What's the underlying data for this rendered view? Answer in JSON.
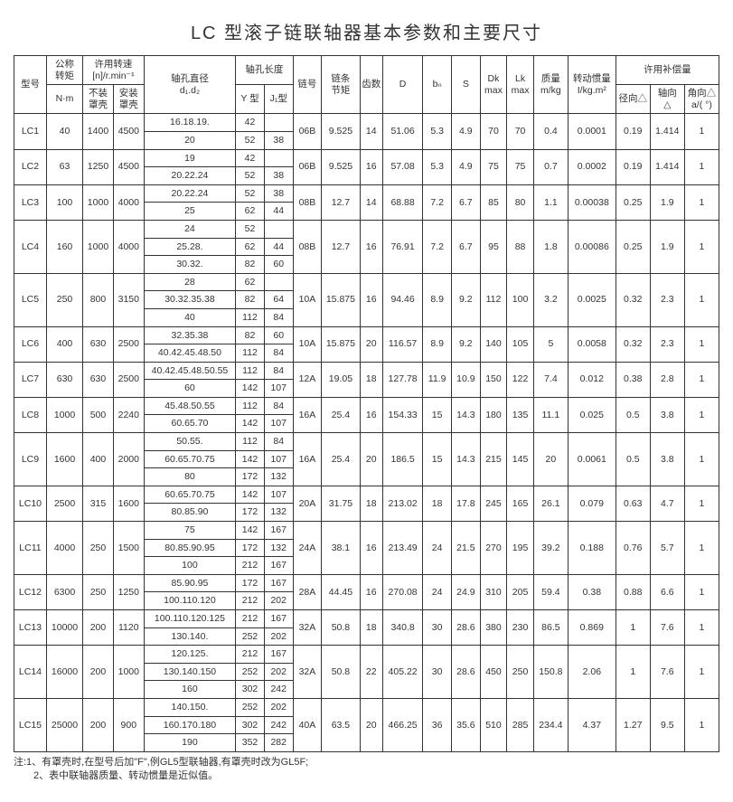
{
  "title": "LC 型滚子链联轴器基本参数和主要尺寸",
  "headers": {
    "col1": "型号",
    "col2": "公称\n转矩",
    "col2u": "N·m",
    "col3": "许用转速\n[n]/r.min⁻¹",
    "col3a": "不装\n罩壳",
    "col3b": "安装\n罩壳",
    "col4": "轴孔直径\nd₁.d₂",
    "col5": "轴孔长度",
    "col5a": "Y 型",
    "col5b": "J₁型",
    "col6": "链号",
    "col7": "链条\n节矩",
    "col8": "齿数",
    "col9": "D",
    "col10": "bₙ",
    "col11": "S",
    "col12": "Dk\nmax",
    "col13": "Lk\nmax",
    "col14": "质量\nm/kg",
    "col15": "转动惯量\nI/kg.m²",
    "col16": "许用补偿量",
    "col16a": "径向△",
    "col16b": "轴向\n△",
    "col16c": "角向△\na/( °)"
  },
  "rows": [
    {
      "id": "LC1",
      "nm": "40",
      "n1": "1400",
      "n2": "4500",
      "bore": [
        {
          "d": "16.18.19.",
          "y": "42",
          "j": ""
        },
        {
          "d": "20",
          "y": "52",
          "j": "38"
        }
      ],
      "chain": "06B",
      "pitch": "9.525",
      "z": "14",
      "D": "51.06",
      "bn": "5.3",
      "S": "4.9",
      "Dk": "70",
      "Lk": "70",
      "mkg": "0.4",
      "I": "0.0001",
      "rad": "0.19",
      "ax": "1.414",
      "ang": "1"
    },
    {
      "id": "LC2",
      "nm": "63",
      "n1": "1250",
      "n2": "4500",
      "bore": [
        {
          "d": "19",
          "y": "42",
          "j": ""
        },
        {
          "d": "20.22.24",
          "y": "52",
          "j": "38"
        }
      ],
      "chain": "06B",
      "pitch": "9.525",
      "z": "16",
      "D": "57.08",
      "bn": "5.3",
      "S": "4.9",
      "Dk": "75",
      "Lk": "75",
      "mkg": "0.7",
      "I": "0.0002",
      "rad": "0.19",
      "ax": "1.414",
      "ang": "1"
    },
    {
      "id": "LC3",
      "nm": "100",
      "n1": "1000",
      "n2": "4000",
      "bore": [
        {
          "d": "20.22.24",
          "y": "52",
          "j": "38"
        },
        {
          "d": "25",
          "y": "62",
          "j": "44"
        }
      ],
      "chain": "08B",
      "pitch": "12.7",
      "z": "14",
      "D": "68.88",
      "bn": "7.2",
      "S": "6.7",
      "Dk": "85",
      "Lk": "80",
      "mkg": "1.1",
      "I": "0.00038",
      "rad": "0.25",
      "ax": "1.9",
      "ang": "1"
    },
    {
      "id": "LC4",
      "nm": "160",
      "n1": "1000",
      "n2": "4000",
      "bore": [
        {
          "d": "24",
          "y": "52",
          "j": ""
        },
        {
          "d": "25.28.",
          "y": "62",
          "j": "44"
        },
        {
          "d": "30.32.",
          "y": "82",
          "j": "60"
        }
      ],
      "chain": "08B",
      "pitch": "12.7",
      "z": "16",
      "D": "76.91",
      "bn": "7.2",
      "S": "6.7",
      "Dk": "95",
      "Lk": "88",
      "mkg": "1.8",
      "I": "0.00086",
      "rad": "0.25",
      "ax": "1.9",
      "ang": "1"
    },
    {
      "id": "LC5",
      "nm": "250",
      "n1": "800",
      "n2": "3150",
      "bore": [
        {
          "d": "28",
          "y": "62",
          "j": ""
        },
        {
          "d": "30.32.35.38",
          "y": "82",
          "j": "64"
        },
        {
          "d": "40",
          "y": "112",
          "j": "84"
        }
      ],
      "chain": "10A",
      "pitch": "15.875",
      "z": "16",
      "D": "94.46",
      "bn": "8.9",
      "S": "9.2",
      "Dk": "112",
      "Lk": "100",
      "mkg": "3.2",
      "I": "0.0025",
      "rad": "0.32",
      "ax": "2.3",
      "ang": "1"
    },
    {
      "id": "LC6",
      "nm": "400",
      "n1": "630",
      "n2": "2500",
      "bore": [
        {
          "d": "32.35.38",
          "y": "82",
          "j": "60"
        },
        {
          "d": "40.42.45.48.50",
          "y": "112",
          "j": "84"
        }
      ],
      "chain": "10A",
      "pitch": "15.875",
      "z": "20",
      "D": "116.57",
      "bn": "8.9",
      "S": "9.2",
      "Dk": "140",
      "Lk": "105",
      "mkg": "5",
      "I": "0.0058",
      "rad": "0.32",
      "ax": "2.3",
      "ang": "1"
    },
    {
      "id": "LC7",
      "nm": "630",
      "n1": "630",
      "n2": "2500",
      "bore": [
        {
          "d": "40.42.45.48.50.55",
          "y": "112",
          "j": "84"
        },
        {
          "d": "60",
          "y": "142",
          "j": "107"
        }
      ],
      "chain": "12A",
      "pitch": "19.05",
      "z": "18",
      "D": "127.78",
      "bn": "11.9",
      "S": "10.9",
      "Dk": "150",
      "Lk": "122",
      "mkg": "7.4",
      "I": "0.012",
      "rad": "0.38",
      "ax": "2.8",
      "ang": "1"
    },
    {
      "id": "LC8",
      "nm": "1000",
      "n1": "500",
      "n2": "2240",
      "bore": [
        {
          "d": "45.48.50.55",
          "y": "112",
          "j": "84"
        },
        {
          "d": "60.65.70",
          "y": "142",
          "j": "107"
        }
      ],
      "chain": "16A",
      "pitch": "25.4",
      "z": "16",
      "D": "154.33",
      "bn": "15",
      "S": "14.3",
      "Dk": "180",
      "Lk": "135",
      "mkg": "11.1",
      "I": "0.025",
      "rad": "0.5",
      "ax": "3.8",
      "ang": "1"
    },
    {
      "id": "LC9",
      "nm": "1600",
      "n1": "400",
      "n2": "2000",
      "bore": [
        {
          "d": "50.55.",
          "y": "112",
          "j": "84"
        },
        {
          "d": "60.65.70.75",
          "y": "142",
          "j": "107"
        },
        {
          "d": "80",
          "y": "172",
          "j": "132"
        }
      ],
      "chain": "16A",
      "pitch": "25.4",
      "z": "20",
      "D": "186.5",
      "bn": "15",
      "S": "14.3",
      "Dk": "215",
      "Lk": "145",
      "mkg": "20",
      "I": "0.0061",
      "rad": "0.5",
      "ax": "3.8",
      "ang": "1"
    },
    {
      "id": "LC10",
      "nm": "2500",
      "n1": "315",
      "n2": "1600",
      "bore": [
        {
          "d": "60.65.70.75",
          "y": "142",
          "j": "107"
        },
        {
          "d": "80.85.90",
          "y": "172",
          "j": "132"
        }
      ],
      "chain": "20A",
      "pitch": "31.75",
      "z": "18",
      "D": "213.02",
      "bn": "18",
      "S": "17.8",
      "Dk": "245",
      "Lk": "165",
      "mkg": "26.1",
      "I": "0.079",
      "rad": "0.63",
      "ax": "4.7",
      "ang": "1"
    },
    {
      "id": "LC11",
      "nm": "4000",
      "n1": "250",
      "n2": "1500",
      "bore": [
        {
          "d": "75",
          "y": "142",
          "j": "167"
        },
        {
          "d": "80.85.90.95",
          "y": "172",
          "j": "132"
        },
        {
          "d": "100",
          "y": "212",
          "j": "167"
        }
      ],
      "chain": "24A",
      "pitch": "38.1",
      "z": "16",
      "D": "213.49",
      "bn": "24",
      "S": "21.5",
      "Dk": "270",
      "Lk": "195",
      "mkg": "39.2",
      "I": "0.188",
      "rad": "0.76",
      "ax": "5.7",
      "ang": "1"
    },
    {
      "id": "LC12",
      "nm": "6300",
      "n1": "250",
      "n2": "1250",
      "bore": [
        {
          "d": "85.90.95",
          "y": "172",
          "j": "167"
        },
        {
          "d": "100.110.120",
          "y": "212",
          "j": "202"
        }
      ],
      "chain": "28A",
      "pitch": "44.45",
      "z": "16",
      "D": "270.08",
      "bn": "24",
      "S": "24.9",
      "Dk": "310",
      "Lk": "205",
      "mkg": "59.4",
      "I": "0.38",
      "rad": "0.88",
      "ax": "6.6",
      "ang": "1"
    },
    {
      "id": "LC13",
      "nm": "10000",
      "n1": "200",
      "n2": "1120",
      "bore": [
        {
          "d": "100.110.120.125",
          "y": "212",
          "j": "167"
        },
        {
          "d": "130.140.",
          "y": "252",
          "j": "202"
        }
      ],
      "chain": "32A",
      "pitch": "50.8",
      "z": "18",
      "D": "340.8",
      "bn": "30",
      "S": "28.6",
      "Dk": "380",
      "Lk": "230",
      "mkg": "86.5",
      "I": "0.869",
      "rad": "1",
      "ax": "7.6",
      "ang": "1"
    },
    {
      "id": "LC14",
      "nm": "16000",
      "n1": "200",
      "n2": "1000",
      "bore": [
        {
          "d": "120.125.",
          "y": "212",
          "j": "167"
        },
        {
          "d": "130.140.150",
          "y": "252",
          "j": "202"
        },
        {
          "d": "160",
          "y": "302",
          "j": "242"
        }
      ],
      "chain": "32A",
      "pitch": "50.8",
      "z": "22",
      "D": "405.22",
      "bn": "30",
      "S": "28.6",
      "Dk": "450",
      "Lk": "250",
      "mkg": "150.8",
      "I": "2.06",
      "rad": "1",
      "ax": "7.6",
      "ang": "1"
    },
    {
      "id": "LC15",
      "nm": "25000",
      "n1": "200",
      "n2": "900",
      "bore": [
        {
          "d": "140.150.",
          "y": "252",
          "j": "202"
        },
        {
          "d": "160.170.180",
          "y": "302",
          "j": "242"
        },
        {
          "d": "190",
          "y": "352",
          "j": "282"
        }
      ],
      "chain": "40A",
      "pitch": "63.5",
      "z": "20",
      "D": "466.25",
      "bn": "36",
      "S": "35.6",
      "Dk": "510",
      "Lk": "285",
      "mkg": "234.4",
      "I": "4.37",
      "rad": "1.27",
      "ax": "9.5",
      "ang": "1"
    }
  ],
  "notes": {
    "n1": "注:1、有罩壳时,在型号后加\"F\",例GL5型联轴器,有罩壳时改为GL5F;",
    "n2": "　　2、表中联轴器质量、转动惯量是近似值。"
  }
}
